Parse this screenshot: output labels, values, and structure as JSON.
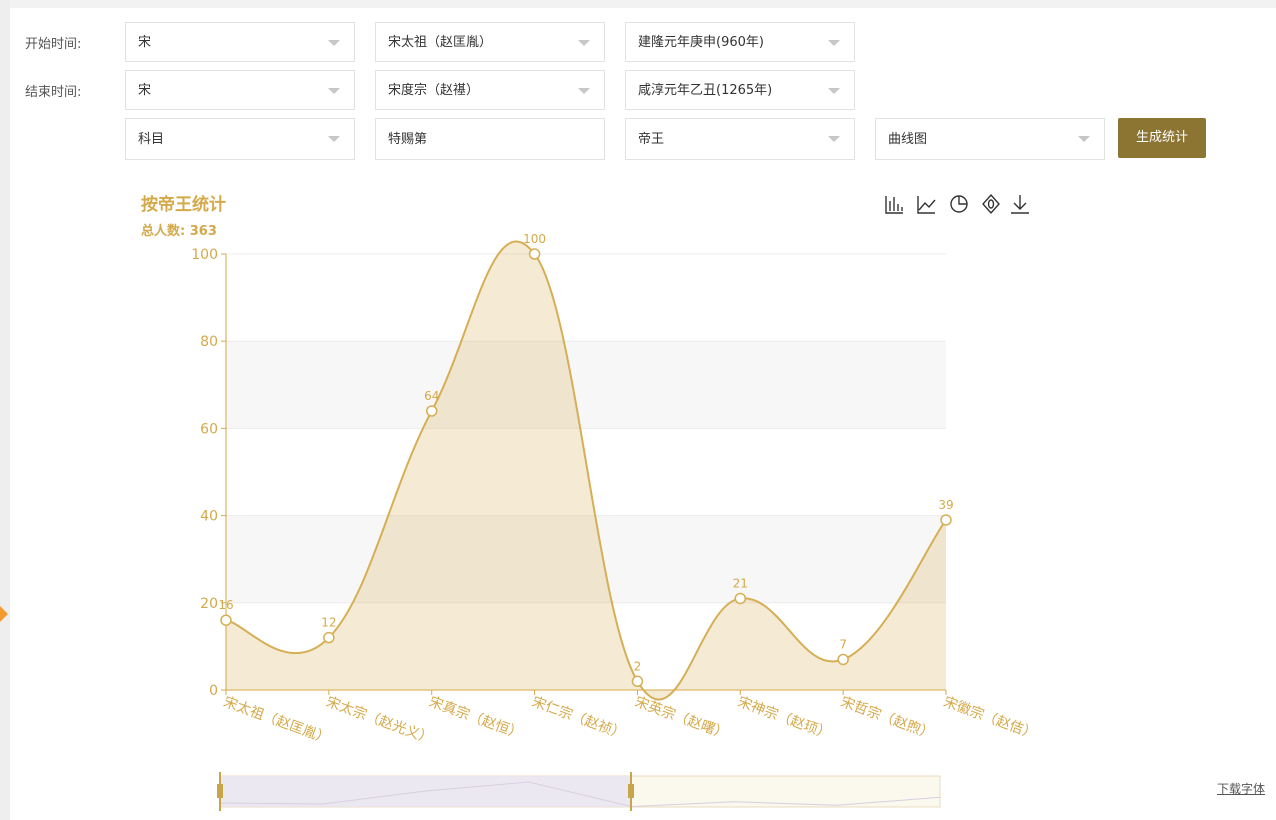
{
  "form": {
    "rows": [
      {
        "label": "开始时间:",
        "fields": [
          "宋",
          "宋太祖（赵匡胤）",
          "建隆元年庚申(960年)"
        ]
      },
      {
        "label": "结束时间:",
        "fields": [
          "宋",
          "宋度宗（赵禥）",
          "咸淳元年乙丑(1265年)"
        ]
      },
      {
        "fields": [
          "科目",
          "特赐第",
          "帝王",
          "曲线图"
        ]
      }
    ],
    "button": "生成统计"
  },
  "link": "下载字体",
  "chart_data": {
    "type": "line",
    "smooth": true,
    "area": true,
    "title": "按帝王统计",
    "subtitle": "总人数: 363",
    "categories": [
      "宋太祖（赵匡胤）",
      "宋太宗（赵光义）",
      "宋真宗（赵恒）",
      "宋仁宗（赵祯）",
      "宋英宗（赵曙）",
      "宋神宗（赵顼）",
      "宋哲宗（赵煦）",
      "宋徽宗（赵佶）"
    ],
    "values": [
      16,
      12,
      64,
      100,
      2,
      21,
      7,
      39
    ],
    "color": "#d6ae55",
    "ylim": [
      0,
      100
    ],
    "yticks": [
      0,
      20,
      40,
      60,
      80,
      100
    ],
    "grid": true
  }
}
